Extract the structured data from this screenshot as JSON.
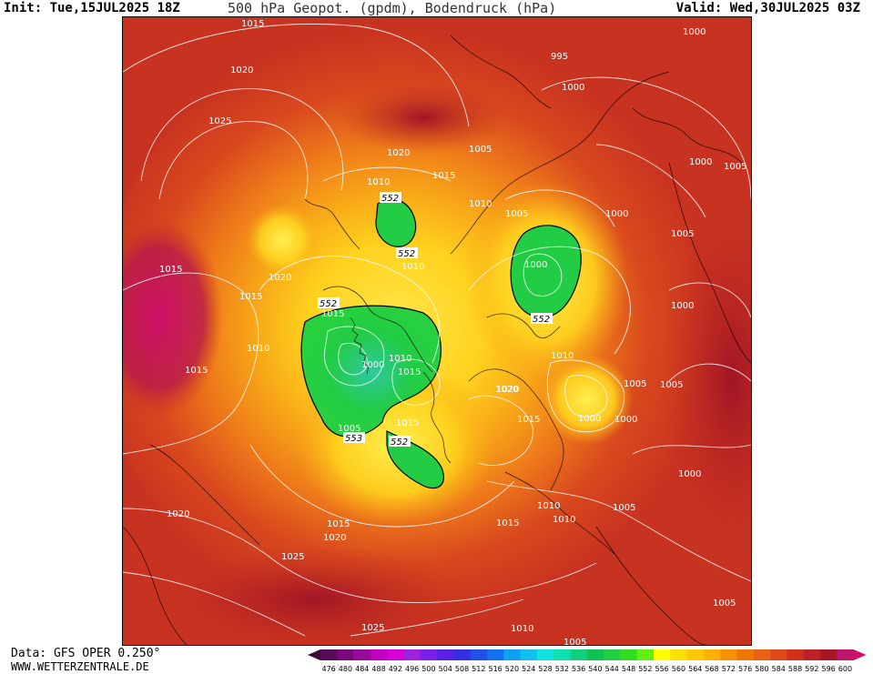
{
  "header": {
    "init": "Init: Tue,15JUL2025 18Z",
    "title": "500 hPa Geopot. (gpdm), Bodendruck (hPa)",
    "valid": "Valid: Wed,30JUL2025 03Z"
  },
  "footer": {
    "data_source": "Data: GFS OPER 0.250°",
    "website": "WWW.WETTERZENTRALE.DE"
  },
  "colors": {
    "background_field": "#d2401e",
    "dark_red": "#a81a28",
    "magenta": "#c0156e",
    "orange": "#e8781c",
    "yellow": "#ffe020",
    "green": "#22cc44",
    "isobar": "#ffffff"
  },
  "scale": {
    "ticks": [
      "476",
      "480",
      "484",
      "488",
      "492",
      "496",
      "500",
      "504",
      "508",
      "512",
      "516",
      "520",
      "524",
      "528",
      "532",
      "536",
      "540",
      "544",
      "548",
      "552",
      "556",
      "560",
      "564",
      "568",
      "572",
      "576",
      "580",
      "584",
      "588",
      "592",
      "596",
      "600"
    ],
    "colors": [
      "#5a0a5a",
      "#7a0a7a",
      "#9a0a9a",
      "#c000c0",
      "#d800d8",
      "#a020e0",
      "#7a20e8",
      "#5a20e8",
      "#3030e0",
      "#2050e8",
      "#1070f0",
      "#10a0f0",
      "#10c0f0",
      "#10e0e0",
      "#10e0b0",
      "#10d080",
      "#10c050",
      "#20d040",
      "#30e020",
      "#60f010",
      "#ffff00",
      "#ffe000",
      "#ffc800",
      "#ffb000",
      "#f89000",
      "#f07800",
      "#e86010",
      "#e04818",
      "#d43020",
      "#c02028",
      "#a81428",
      "#c0156e"
    ]
  },
  "isobar_labels": [
    {
      "text": "1015",
      "id": "a"
    },
    {
      "text": "1020",
      "id": "b"
    },
    {
      "text": "1025",
      "id": "c"
    },
    {
      "text": "1020",
      "id": "d"
    },
    {
      "text": "1010",
      "id": "e"
    },
    {
      "text": "1015",
      "id": "f"
    },
    {
      "text": "995",
      "id": "g"
    },
    {
      "text": "1000",
      "id": "h"
    },
    {
      "text": "1000",
      "id": "i"
    },
    {
      "text": "1005",
      "id": "j"
    },
    {
      "text": "1010",
      "id": "k"
    },
    {
      "text": "1005",
      "id": "l"
    },
    {
      "text": "1000",
      "id": "m"
    },
    {
      "text": "1000",
      "id": "n"
    },
    {
      "text": "1005",
      "id": "o"
    },
    {
      "text": "1005",
      "id": "p"
    },
    {
      "text": "1000",
      "id": "q"
    },
    {
      "text": "1010",
      "id": "r"
    },
    {
      "text": "1015",
      "id": "s"
    },
    {
      "text": "1020",
      "id": "t"
    },
    {
      "text": "1015",
      "id": "u"
    },
    {
      "text": "1010",
      "id": "v"
    },
    {
      "text": "1015",
      "id": "w"
    },
    {
      "text": "1020",
      "id": "x"
    },
    {
      "text": "1015",
      "id": "y"
    },
    {
      "text": "1010",
      "id": "z"
    },
    {
      "text": "1000",
      "id": "aa"
    },
    {
      "text": "1010",
      "id": "ab"
    },
    {
      "text": "1015",
      "id": "ac"
    },
    {
      "text": "1005",
      "id": "ad"
    },
    {
      "text": "1015",
      "id": "ae"
    },
    {
      "text": "1020",
      "id": "af"
    },
    {
      "text": "1015",
      "id": "ag"
    },
    {
      "text": "1010",
      "id": "ah"
    },
    {
      "text": "1000",
      "id": "ai"
    },
    {
      "text": "1005",
      "id": "aj"
    },
    {
      "text": "1000",
      "id": "ak"
    },
    {
      "text": "1005",
      "id": "al"
    },
    {
      "text": "1020",
      "id": "am"
    },
    {
      "text": "1015",
      "id": "an"
    },
    {
      "text": "1020",
      "id": "ao"
    },
    {
      "text": "1025",
      "id": "ap"
    },
    {
      "text": "1015",
      "id": "aq"
    },
    {
      "text": "1010",
      "id": "ar"
    },
    {
      "text": "1005",
      "id": "as"
    },
    {
      "text": "1005",
      "id": "at"
    },
    {
      "text": "1010",
      "id": "au"
    },
    {
      "text": "1005",
      "id": "av"
    },
    {
      "text": "1025",
      "id": "aw"
    },
    {
      "text": "1000",
      "id": "ax"
    },
    {
      "text": "1000",
      "id": "ay"
    }
  ],
  "contour_labels": [
    {
      "text": "552",
      "id": "c1"
    },
    {
      "text": "552",
      "id": "c2"
    },
    {
      "text": "552",
      "id": "c3"
    },
    {
      "text": "552",
      "id": "c4"
    },
    {
      "text": "553",
      "id": "c5"
    },
    {
      "text": "552",
      "id": "c6"
    }
  ]
}
